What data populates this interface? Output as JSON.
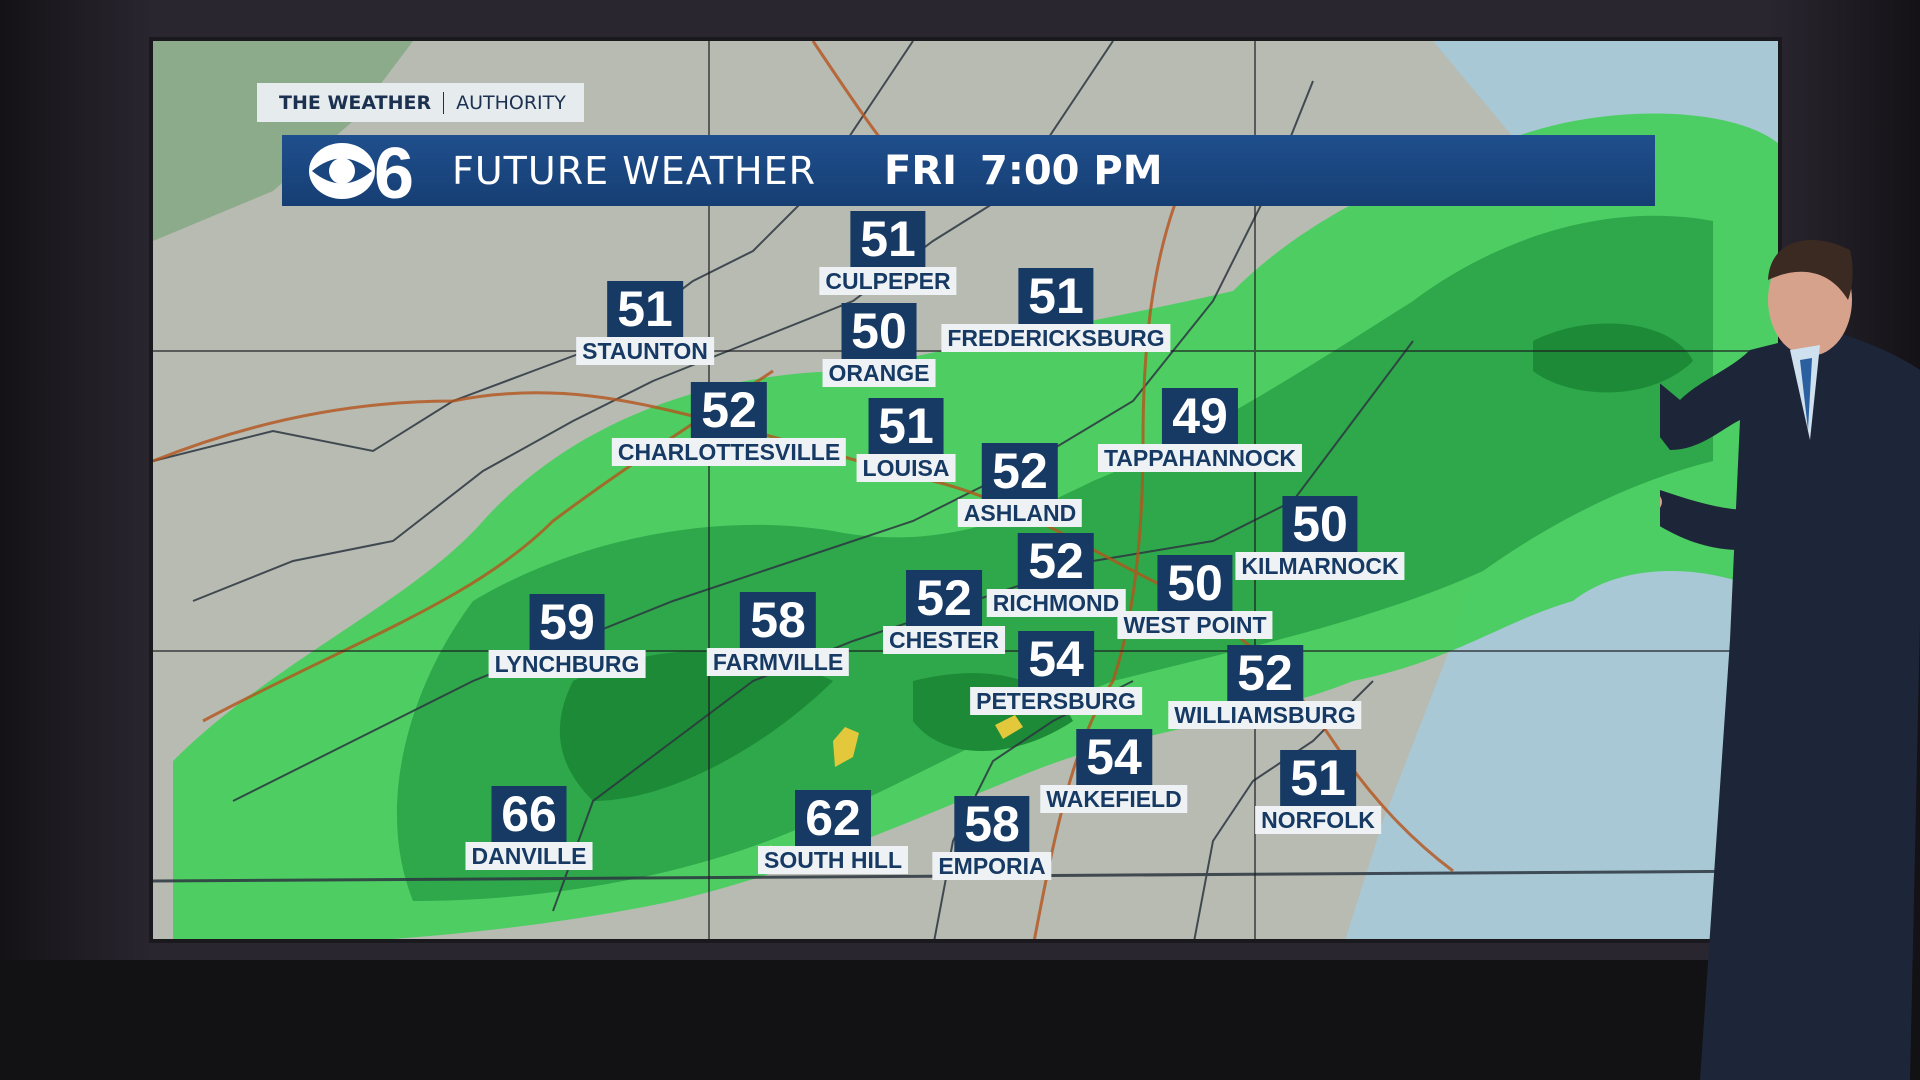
{
  "branding": {
    "tag_bold": "THE WEATHER",
    "tag_light": "AUTHORITY",
    "station_logo": "CBS 6"
  },
  "header": {
    "title": "FUTURE WEATHER",
    "day": "FRI",
    "time": "7:00 PM"
  },
  "colors": {
    "header_bg": "#1a4680",
    "temp_box": "#163a63",
    "label_box": "#eef2f5",
    "rain_light": "#3fcf5a",
    "rain_heavy": "#1c8a36",
    "rain_moderate_yellow": "#e2c83a"
  },
  "cities": [
    {
      "name": "CULPEPER",
      "temp": "51"
    },
    {
      "name": "STAUNTON",
      "temp": "51"
    },
    {
      "name": "ORANGE",
      "temp": "50"
    },
    {
      "name": "FREDERICKSBURG",
      "temp": "51"
    },
    {
      "name": "CHARLOTTESVILLE",
      "temp": "52"
    },
    {
      "name": "LOUISA",
      "temp": "51"
    },
    {
      "name": "TAPPAHANNOCK",
      "temp": "49"
    },
    {
      "name": "ASHLAND",
      "temp": "52"
    },
    {
      "name": "KILMARNOCK",
      "temp": "50"
    },
    {
      "name": "RICHMOND",
      "temp": "52"
    },
    {
      "name": "WEST POINT",
      "temp": "50"
    },
    {
      "name": "CHESTER",
      "temp": "52"
    },
    {
      "name": "LYNCHBURG",
      "temp": "59"
    },
    {
      "name": "FARMVILLE",
      "temp": "58"
    },
    {
      "name": "PETERSBURG",
      "temp": "54"
    },
    {
      "name": "WILLIAMSBURG",
      "temp": "52"
    },
    {
      "name": "WAKEFIELD",
      "temp": "54"
    },
    {
      "name": "NORFOLK",
      "temp": "51"
    },
    {
      "name": "DANVILLE",
      "temp": "66"
    },
    {
      "name": "SOUTH HILL",
      "temp": "62"
    },
    {
      "name": "EMPORIA",
      "temp": "58"
    }
  ]
}
